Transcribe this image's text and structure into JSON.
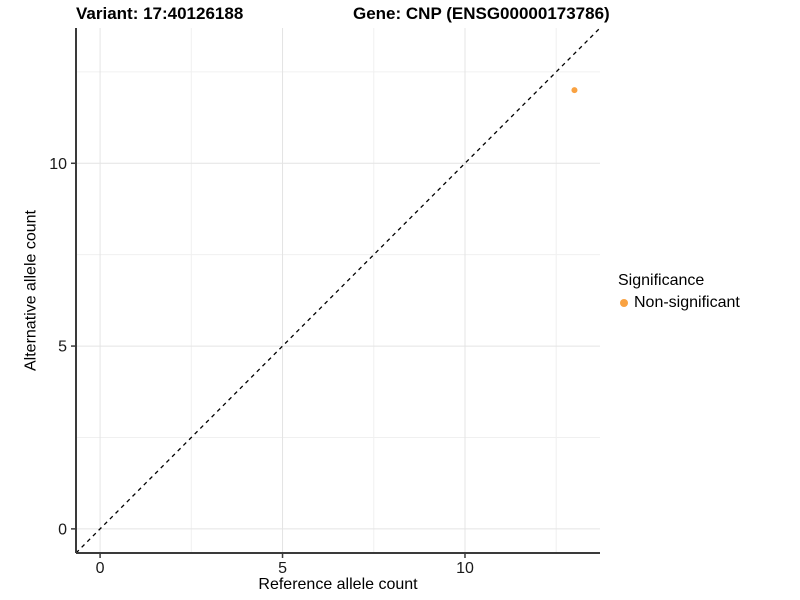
{
  "titles": {
    "left": "Variant: 17:40126188",
    "right": "Gene: CNP (ENSG00000173786)"
  },
  "legend": {
    "title": "Significance",
    "items": [
      {
        "label": "Non-significant",
        "color": "#F9A242"
      }
    ]
  },
  "colors": {
    "background": "#FFFFFF",
    "grid_major": "#E4E4E4",
    "grid_minor": "#F0F0F0",
    "axis": "#3A3A3A",
    "tick_label": "#1A1A1A",
    "reference_line": "#000000",
    "point": "#F9A242"
  },
  "chart_data": {
    "type": "scatter",
    "title": "Variant: 17:40126188  Gene: CNP (ENSG00000173786)",
    "xlabel": "Reference allele count",
    "ylabel": "Alternative allele count",
    "xlim": [
      -0.66,
      13.7
    ],
    "ylim": [
      -0.66,
      13.7
    ],
    "x_major_ticks": [
      0,
      5,
      10
    ],
    "y_major_ticks": [
      0,
      5,
      10
    ],
    "x_minor_ticks": [
      2.5,
      7.5,
      12.5
    ],
    "y_minor_ticks": [
      2.5,
      7.5,
      12.5
    ],
    "grid": true,
    "legend_position": "right",
    "series": [
      {
        "name": "Non-significant",
        "color": "#F9A242",
        "points": [
          {
            "x": 13,
            "y": 12
          }
        ]
      }
    ],
    "reference_line": {
      "type": "identity",
      "slope": 1,
      "intercept": 0,
      "style": "dashed"
    }
  }
}
